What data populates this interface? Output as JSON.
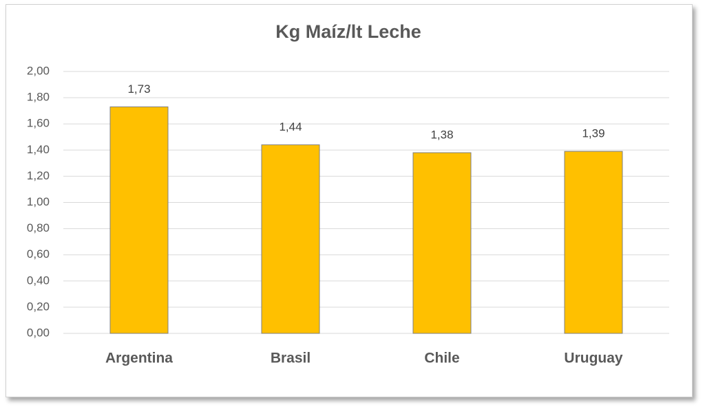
{
  "chart_data": {
    "type": "bar",
    "title": "Kg Maíz/lt Leche",
    "categories": [
      "Argentina",
      "Brasil",
      "Chile",
      "Uruguay"
    ],
    "values": [
      1.73,
      1.44,
      1.38,
      1.39
    ],
    "value_labels": [
      "1,73",
      "1,44",
      "1,38",
      "1,39"
    ],
    "color": "#ffc000",
    "ylim": [
      0,
      2
    ],
    "yticks": [
      {
        "value": 0,
        "label": "0,00"
      },
      {
        "value": 0.2,
        "label": "0,20"
      },
      {
        "value": 0.4,
        "label": "0,40"
      },
      {
        "value": 0.6,
        "label": "0,60"
      },
      {
        "value": 0.8,
        "label": "0,80"
      },
      {
        "value": 1,
        "label": "1,00"
      },
      {
        "value": 1.2,
        "label": "1,20"
      },
      {
        "value": 1.4,
        "label": "1,40"
      },
      {
        "value": 1.6,
        "label": "1,60"
      },
      {
        "value": 1.8,
        "label": "1,80"
      },
      {
        "value": 2,
        "label": "2,00"
      }
    ],
    "grid": true
  }
}
